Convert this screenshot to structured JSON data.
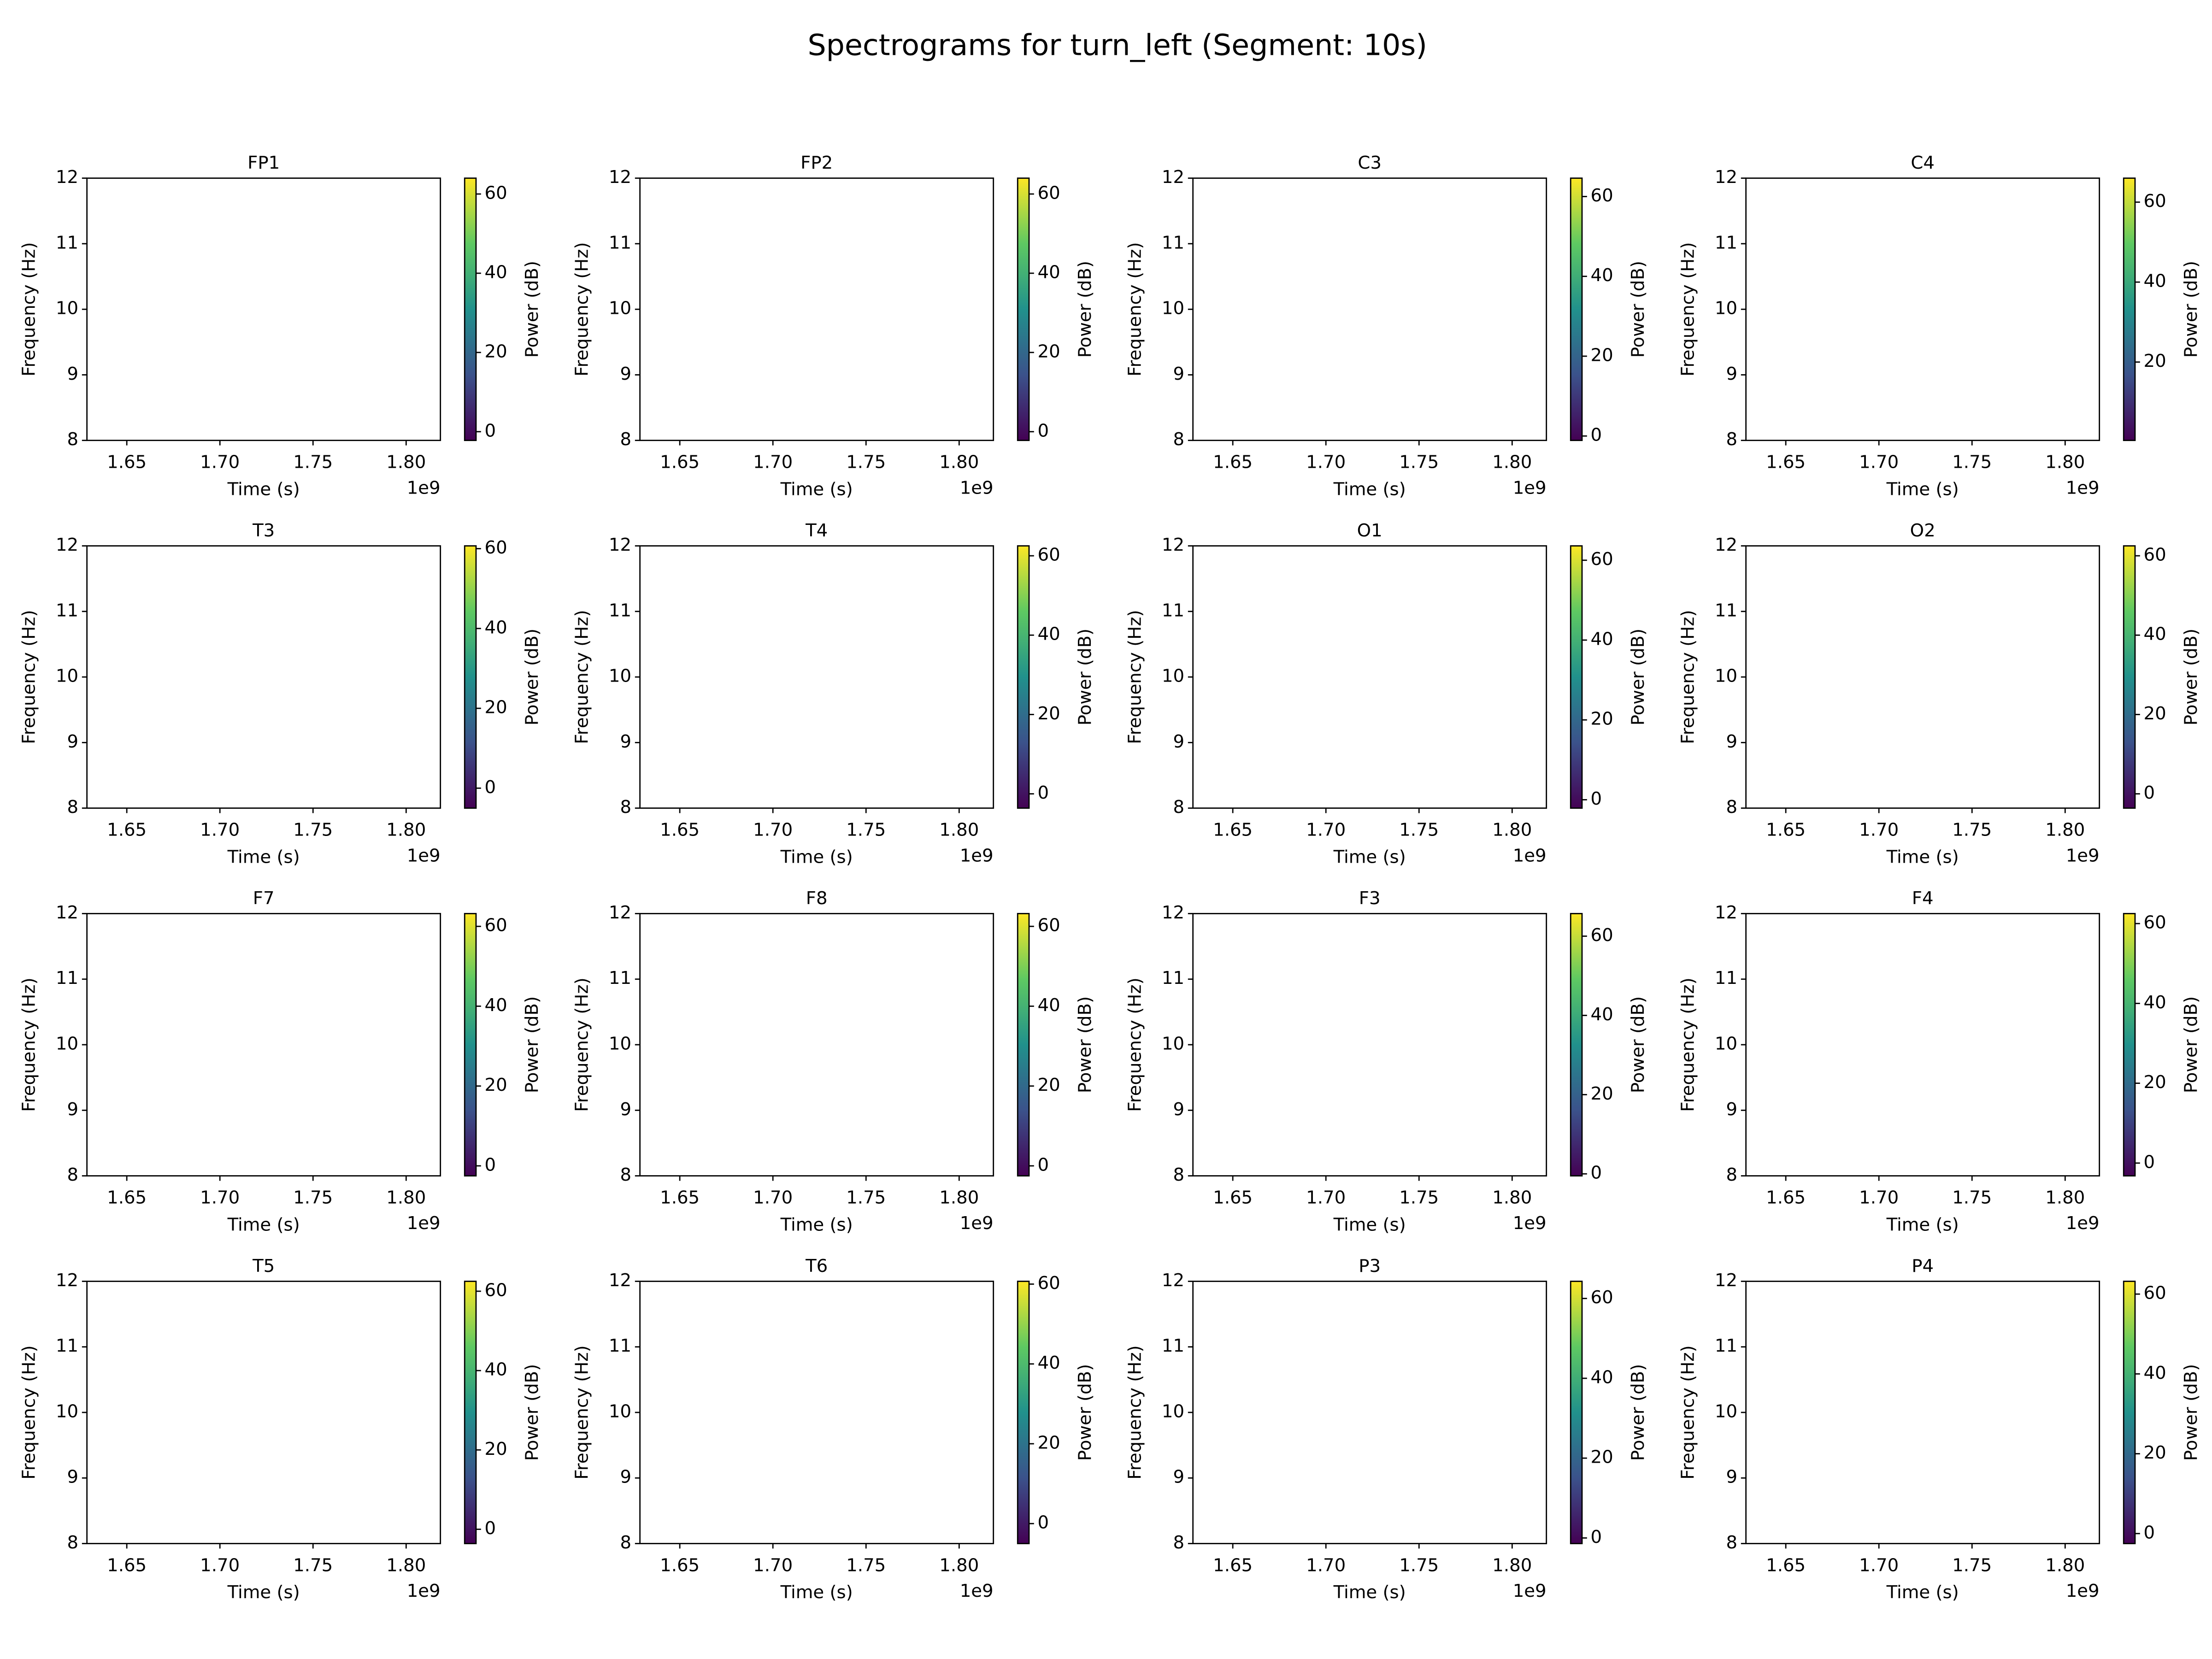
{
  "title": "Spectrograms for turn_left (Segment: 10s)",
  "chart_data": [
    {
      "type": "spectrogram",
      "title": "FP1",
      "xlabel": "Time (s)",
      "ylabel": "Frequency (Hz)",
      "x_offset_label": "1e9",
      "xlim": [
        1.6286,
        1.8184
      ],
      "xticks": [
        1.65,
        {
          "value": 1.7,
          "label": "1.70"
        },
        1.75,
        {
          "value": 1.8,
          "label": "1.80"
        }
      ],
      "ylim": [
        8,
        12
      ],
      "yticks": [
        8,
        9,
        10,
        11,
        12
      ],
      "colorbar": {
        "label": "Power (dB)",
        "lim": [
          -2.2,
          64
        ],
        "ticks": [
          0,
          20,
          40,
          60
        ]
      },
      "colormap": [
        "#440154",
        "#3b528b",
        "#21918c",
        "#5ec962",
        "#fde725"
      ]
    },
    {
      "type": "spectrogram",
      "title": "FP2",
      "xlabel": "Time (s)",
      "ylabel": "Frequency (Hz)",
      "x_offset_label": "1e9",
      "xlim": [
        1.6286,
        1.8184
      ],
      "xticks": [
        1.65,
        {
          "value": 1.7,
          "label": "1.70"
        },
        1.75,
        {
          "value": 1.8,
          "label": "1.80"
        }
      ],
      "ylim": [
        8,
        12
      ],
      "yticks": [
        8,
        9,
        10,
        11,
        12
      ],
      "colorbar": {
        "label": "Power (dB)",
        "lim": [
          -2.2,
          64
        ],
        "ticks": [
          0,
          20,
          40,
          60
        ]
      },
      "colormap": [
        "#440154",
        "#3b528b",
        "#21918c",
        "#5ec962",
        "#fde725"
      ]
    },
    {
      "type": "spectrogram",
      "title": "C3",
      "xlabel": "Time (s)",
      "ylabel": "Frequency (Hz)",
      "x_offset_label": "1e9",
      "xlim": [
        1.6286,
        1.8184
      ],
      "xticks": [
        1.65,
        {
          "value": 1.7,
          "label": "1.70"
        },
        1.75,
        {
          "value": 1.8,
          "label": "1.80"
        }
      ],
      "ylim": [
        8,
        12
      ],
      "yticks": [
        8,
        9,
        10,
        11,
        12
      ],
      "colorbar": {
        "label": "Power (dB)",
        "lim": [
          -1.1,
          64.6
        ],
        "ticks": [
          0,
          20,
          40,
          60
        ]
      },
      "colormap": [
        "#440154",
        "#3b528b",
        "#21918c",
        "#5ec962",
        "#fde725"
      ]
    },
    {
      "type": "spectrogram",
      "title": "C4",
      "xlabel": "Time (s)",
      "ylabel": "Frequency (Hz)",
      "x_offset_label": "1e9",
      "xlim": [
        1.6286,
        1.8184
      ],
      "xticks": [
        1.65,
        {
          "value": 1.7,
          "label": "1.70"
        },
        1.75,
        {
          "value": 1.8,
          "label": "1.80"
        }
      ],
      "ylim": [
        8,
        12
      ],
      "yticks": [
        8,
        9,
        10,
        11,
        12
      ],
      "colorbar": {
        "label": "Power (dB)",
        "lim": [
          0.4,
          66
        ],
        "ticks": [
          20,
          40,
          60
        ]
      },
      "colormap": [
        "#440154",
        "#3b528b",
        "#21918c",
        "#5ec962",
        "#fde725"
      ]
    },
    {
      "type": "spectrogram",
      "title": "T3",
      "xlabel": "Time (s)",
      "ylabel": "Frequency (Hz)",
      "x_offset_label": "1e9",
      "xlim": [
        1.6286,
        1.8184
      ],
      "xticks": [
        1.65,
        {
          "value": 1.7,
          "label": "1.70"
        },
        1.75,
        {
          "value": 1.8,
          "label": "1.80"
        }
      ],
      "ylim": [
        8,
        12
      ],
      "yticks": [
        8,
        9,
        10,
        11,
        12
      ],
      "colorbar": {
        "label": "Power (dB)",
        "lim": [
          -5,
          60.7
        ],
        "ticks": [
          0,
          20,
          40,
          60
        ]
      },
      "colormap": [
        "#440154",
        "#3b528b",
        "#21918c",
        "#5ec962",
        "#fde725"
      ]
    },
    {
      "type": "spectrogram",
      "title": "T4",
      "xlabel": "Time (s)",
      "ylabel": "Frequency (Hz)",
      "x_offset_label": "1e9",
      "xlim": [
        1.6286,
        1.8184
      ],
      "xticks": [
        1.65,
        {
          "value": 1.7,
          "label": "1.70"
        },
        1.75,
        {
          "value": 1.8,
          "label": "1.80"
        }
      ],
      "ylim": [
        8,
        12
      ],
      "yticks": [
        8,
        9,
        10,
        11,
        12
      ],
      "colorbar": {
        "label": "Power (dB)",
        "lim": [
          -3.6,
          62.5
        ],
        "ticks": [
          0,
          20,
          40,
          60
        ]
      },
      "colormap": [
        "#440154",
        "#3b528b",
        "#21918c",
        "#5ec962",
        "#fde725"
      ]
    },
    {
      "type": "spectrogram",
      "title": "O1",
      "xlabel": "Time (s)",
      "ylabel": "Frequency (Hz)",
      "x_offset_label": "1e9",
      "xlim": [
        1.6286,
        1.8184
      ],
      "xticks": [
        1.65,
        {
          "value": 1.7,
          "label": "1.70"
        },
        1.75,
        {
          "value": 1.8,
          "label": "1.80"
        }
      ],
      "ylim": [
        8,
        12
      ],
      "yticks": [
        8,
        9,
        10,
        11,
        12
      ],
      "colorbar": {
        "label": "Power (dB)",
        "lim": [
          -2.1,
          63.6
        ],
        "ticks": [
          0,
          20,
          40,
          60
        ]
      },
      "colormap": [
        "#440154",
        "#3b528b",
        "#21918c",
        "#5ec962",
        "#fde725"
      ]
    },
    {
      "type": "spectrogram",
      "title": "O2",
      "xlabel": "Time (s)",
      "ylabel": "Frequency (Hz)",
      "x_offset_label": "1e9",
      "xlim": [
        1.6286,
        1.8184
      ],
      "xticks": [
        1.65,
        {
          "value": 1.7,
          "label": "1.70"
        },
        1.75,
        {
          "value": 1.8,
          "label": "1.80"
        }
      ],
      "ylim": [
        8,
        12
      ],
      "yticks": [
        8,
        9,
        10,
        11,
        12
      ],
      "colorbar": {
        "label": "Power (dB)",
        "lim": [
          -3.6,
          62.5
        ],
        "ticks": [
          0,
          20,
          40,
          60
        ]
      },
      "colormap": [
        "#440154",
        "#3b528b",
        "#21918c",
        "#5ec962",
        "#fde725"
      ]
    },
    {
      "type": "spectrogram",
      "title": "F7",
      "xlabel": "Time (s)",
      "ylabel": "Frequency (Hz)",
      "x_offset_label": "1e9",
      "xlim": [
        1.6286,
        1.8184
      ],
      "xticks": [
        1.65,
        {
          "value": 1.7,
          "label": "1.70"
        },
        1.75,
        {
          "value": 1.8,
          "label": "1.80"
        }
      ],
      "ylim": [
        8,
        12
      ],
      "yticks": [
        8,
        9,
        10,
        11,
        12
      ],
      "colorbar": {
        "label": "Power (dB)",
        "lim": [
          -2.5,
          63.2
        ],
        "ticks": [
          0,
          20,
          40,
          60
        ]
      },
      "colormap": [
        "#440154",
        "#3b528b",
        "#21918c",
        "#5ec962",
        "#fde725"
      ]
    },
    {
      "type": "spectrogram",
      "title": "F8",
      "xlabel": "Time (s)",
      "ylabel": "Frequency (Hz)",
      "x_offset_label": "1e9",
      "xlim": [
        1.6286,
        1.8184
      ],
      "xticks": [
        1.65,
        {
          "value": 1.7,
          "label": "1.70"
        },
        1.75,
        {
          "value": 1.8,
          "label": "1.80"
        }
      ],
      "ylim": [
        8,
        12
      ],
      "yticks": [
        8,
        9,
        10,
        11,
        12
      ],
      "colorbar": {
        "label": "Power (dB)",
        "lim": [
          -2.5,
          63.2
        ],
        "ticks": [
          0,
          20,
          40,
          60
        ]
      },
      "colormap": [
        "#440154",
        "#3b528b",
        "#21918c",
        "#5ec962",
        "#fde725"
      ]
    },
    {
      "type": "spectrogram",
      "title": "F3",
      "xlabel": "Time (s)",
      "ylabel": "Frequency (Hz)",
      "x_offset_label": "1e9",
      "xlim": [
        1.6286,
        1.8184
      ],
      "xticks": [
        1.65,
        {
          "value": 1.7,
          "label": "1.70"
        },
        1.75,
        {
          "value": 1.8,
          "label": "1.80"
        }
      ],
      "ylim": [
        8,
        12
      ],
      "yticks": [
        8,
        9,
        10,
        11,
        12
      ],
      "colorbar": {
        "label": "Power (dB)",
        "lim": [
          -0.5,
          65.7
        ],
        "ticks": [
          0,
          20,
          40,
          60
        ]
      },
      "colormap": [
        "#440154",
        "#3b528b",
        "#21918c",
        "#5ec962",
        "#fde725"
      ]
    },
    {
      "type": "spectrogram",
      "title": "F4",
      "xlabel": "Time (s)",
      "ylabel": "Frequency (Hz)",
      "x_offset_label": "1e9",
      "xlim": [
        1.6286,
        1.8184
      ],
      "xticks": [
        1.65,
        {
          "value": 1.7,
          "label": "1.70"
        },
        1.75,
        {
          "value": 1.8,
          "label": "1.80"
        }
      ],
      "ylim": [
        8,
        12
      ],
      "yticks": [
        8,
        9,
        10,
        11,
        12
      ],
      "colorbar": {
        "label": "Power (dB)",
        "lim": [
          -3.2,
          62.5
        ],
        "ticks": [
          0,
          20,
          40,
          60
        ]
      },
      "colormap": [
        "#440154",
        "#3b528b",
        "#21918c",
        "#5ec962",
        "#fde725"
      ]
    },
    {
      "type": "spectrogram",
      "title": "T5",
      "xlabel": "Time (s)",
      "ylabel": "Frequency (Hz)",
      "x_offset_label": "1e9",
      "xlim": [
        1.6286,
        1.8184
      ],
      "xticks": [
        1.65,
        {
          "value": 1.7,
          "label": "1.70"
        },
        1.75,
        {
          "value": 1.8,
          "label": "1.80"
        }
      ],
      "ylim": [
        8,
        12
      ],
      "yticks": [
        8,
        9,
        10,
        11,
        12
      ],
      "colorbar": {
        "label": "Power (dB)",
        "lim": [
          -3.6,
          62.5
        ],
        "ticks": [
          0,
          20,
          40,
          60
        ]
      },
      "colormap": [
        "#440154",
        "#3b528b",
        "#21918c",
        "#5ec962",
        "#fde725"
      ]
    },
    {
      "type": "spectrogram",
      "title": "T6",
      "xlabel": "Time (s)",
      "ylabel": "Frequency (Hz)",
      "x_offset_label": "1e9",
      "xlim": [
        1.6286,
        1.8184
      ],
      "xticks": [
        1.65,
        {
          "value": 1.7,
          "label": "1.70"
        },
        1.75,
        {
          "value": 1.8,
          "label": "1.80"
        }
      ],
      "ylim": [
        8,
        12
      ],
      "yticks": [
        8,
        9,
        10,
        11,
        12
      ],
      "colorbar": {
        "label": "Power (dB)",
        "lim": [
          -5,
          60.7
        ],
        "ticks": [
          0,
          20,
          40,
          60
        ]
      },
      "colormap": [
        "#440154",
        "#3b528b",
        "#21918c",
        "#5ec962",
        "#fde725"
      ]
    },
    {
      "type": "spectrogram",
      "title": "P3",
      "xlabel": "Time (s)",
      "ylabel": "Frequency (Hz)",
      "x_offset_label": "1e9",
      "xlim": [
        1.6286,
        1.8184
      ],
      "xticks": [
        1.65,
        {
          "value": 1.7,
          "label": "1.70"
        },
        1.75,
        {
          "value": 1.8,
          "label": "1.80"
        }
      ],
      "ylim": [
        8,
        12
      ],
      "yticks": [
        8,
        9,
        10,
        11,
        12
      ],
      "colorbar": {
        "label": "Power (dB)",
        "lim": [
          -1.4,
          64.3
        ],
        "ticks": [
          0,
          20,
          40,
          60
        ]
      },
      "colormap": [
        "#440154",
        "#3b528b",
        "#21918c",
        "#5ec962",
        "#fde725"
      ]
    },
    {
      "type": "spectrogram",
      "title": "P4",
      "xlabel": "Time (s)",
      "ylabel": "Frequency (Hz)",
      "x_offset_label": "1e9",
      "xlim": [
        1.6286,
        1.8184
      ],
      "xticks": [
        1.65,
        {
          "value": 1.7,
          "label": "1.70"
        },
        1.75,
        {
          "value": 1.8,
          "label": "1.80"
        }
      ],
      "ylim": [
        8,
        12
      ],
      "yticks": [
        8,
        9,
        10,
        11,
        12
      ],
      "colorbar": {
        "label": "Power (dB)",
        "lim": [
          -2.5,
          63.2
        ],
        "ticks": [
          0,
          20,
          40,
          60
        ]
      },
      "colormap": [
        "#440154",
        "#3b528b",
        "#21918c",
        "#5ec962",
        "#fde725"
      ]
    }
  ]
}
